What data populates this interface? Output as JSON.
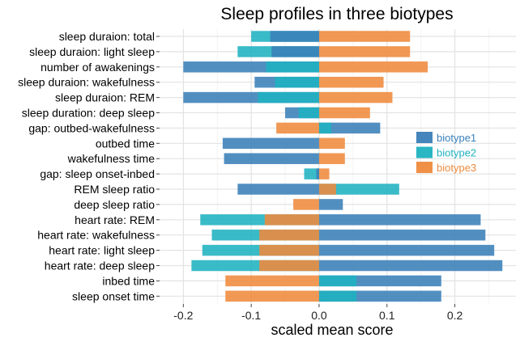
{
  "chart_data": {
    "type": "bar",
    "orientation": "horizontal",
    "overlay": true,
    "title": "Sleep profiles in three biotypes",
    "xlabel": "scaled mean score",
    "ylabel": "",
    "xlim": [
      -0.235,
      0.29
    ],
    "xticks": [
      -0.2,
      -0.1,
      0.0,
      0.1,
      0.2
    ],
    "xtick_labels": [
      "-0.2",
      "-0.1",
      "0.0",
      "0.1",
      "0.2"
    ],
    "grid": true,
    "legend_position": "right",
    "categories": [
      "sleep duraion: total",
      "sleep duraion: light sleep",
      "number of awakenings",
      "sleep duraion: wakefulness",
      "sleep duraion: REM",
      "sleep duration: deep sleep",
      "gap: outbed-wakefulness",
      "outbed time",
      "wakefulness time",
      "gap: sleep onset-inbed",
      "REM sleep ratio",
      "deep sleep ratio",
      "heart rate: REM",
      "heart rate: wakefulness",
      "heart rate: light sleep",
      "heart rate: deep sleep",
      "inbed time",
      "sleep onset time"
    ],
    "series": [
      {
        "name": "biotype1",
        "color": "#3a7fb8",
        "values": [
          -0.072,
          -0.07,
          -0.2,
          -0.095,
          -0.2,
          -0.05,
          0.09,
          -0.142,
          -0.14,
          -0.004,
          -0.12,
          0.035,
          0.238,
          0.245,
          0.258,
          0.27,
          0.18,
          0.18
        ]
      },
      {
        "name": "biotype2",
        "color": "#1fb2c0",
        "values": [
          -0.1,
          -0.12,
          -0.078,
          -0.065,
          -0.09,
          -0.03,
          0.018,
          0.0,
          0.0,
          -0.022,
          0.118,
          0.0,
          -0.175,
          -0.158,
          -0.172,
          -0.188,
          0.055,
          0.055
        ]
      },
      {
        "name": "biotype3",
        "color": "#ef8a3c",
        "values": [
          0.134,
          0.134,
          0.16,
          0.095,
          0.108,
          0.075,
          -0.063,
          0.038,
          0.038,
          0.015,
          0.025,
          -0.038,
          -0.08,
          -0.088,
          -0.088,
          -0.088,
          -0.138,
          -0.138
        ]
      }
    ]
  }
}
